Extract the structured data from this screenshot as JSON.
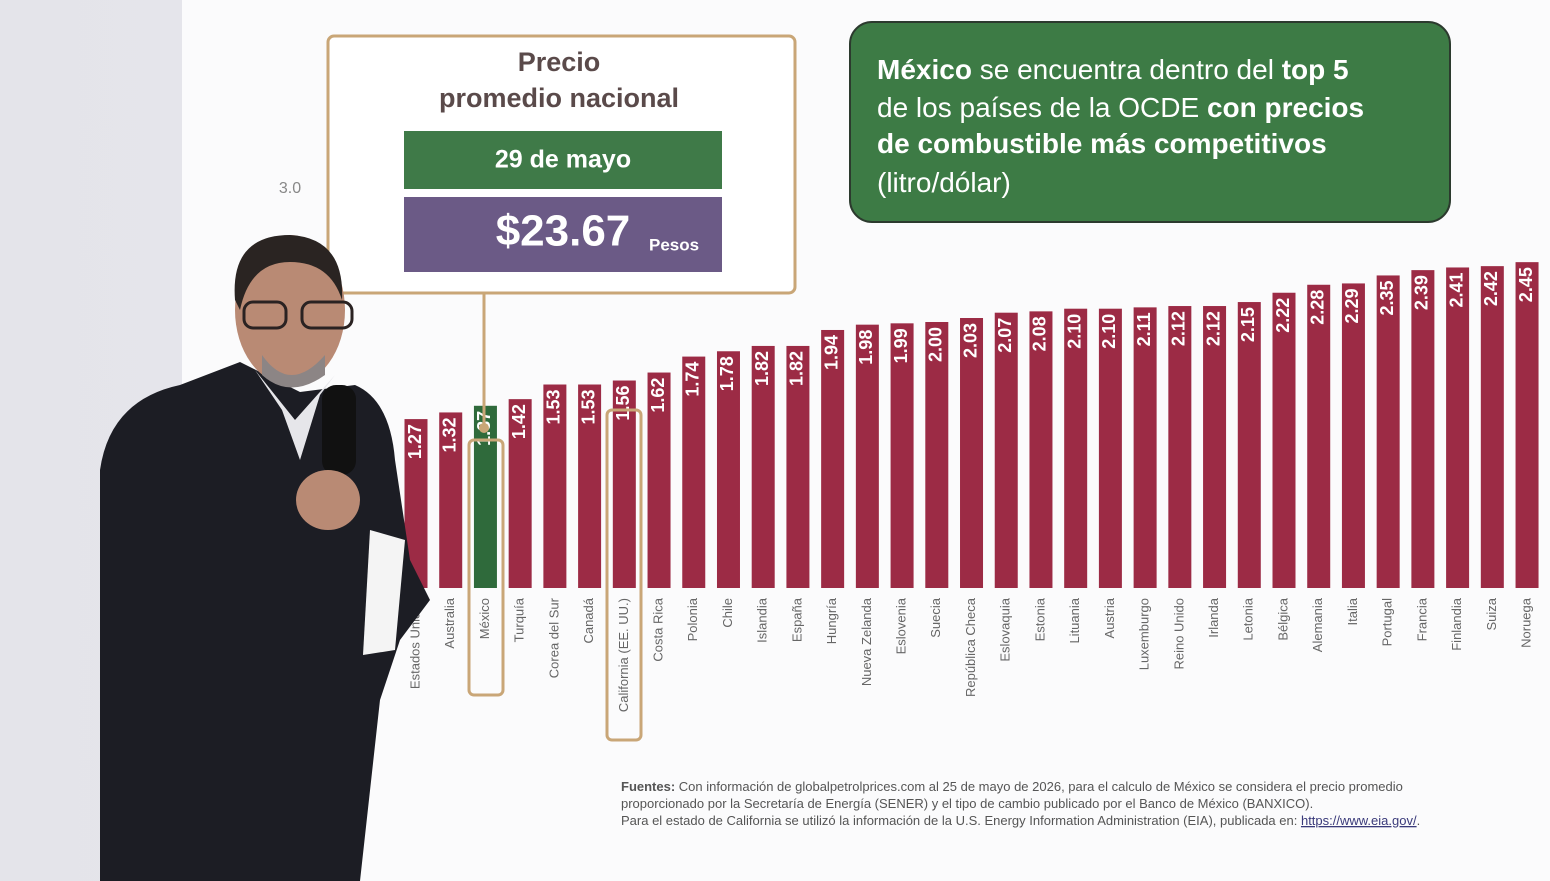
{
  "chart_data": {
    "type": "bar",
    "categories": [
      "Estados Unidos",
      "Australia",
      "México",
      "Turquía",
      "Corea del Sur",
      "Canadá",
      "California (EE. UU.)",
      "Costa Rica",
      "Polonia",
      "Chile",
      "Islandia",
      "España",
      "Hungría",
      "Nueva Zelanda",
      "Eslovenia",
      "Suecia",
      "República Checa",
      "Eslovaquia",
      "Estonia",
      "Lituania",
      "Austria",
      "Luxemburgo",
      "Reino Unido",
      "Irlanda",
      "Letonia",
      "Bélgica",
      "Alemania",
      "Italia",
      "Portugal",
      "Francia",
      "Finlandia",
      "Suiza",
      "Noruega"
    ],
    "values": [
      1.27,
      1.32,
      1.37,
      1.42,
      1.53,
      1.53,
      1.56,
      1.62,
      1.74,
      1.78,
      1.82,
      1.82,
      1.94,
      1.98,
      1.99,
      2.0,
      2.03,
      2.07,
      2.08,
      2.1,
      2.1,
      2.11,
      2.12,
      2.12,
      2.15,
      2.22,
      2.28,
      2.29,
      2.35,
      2.39,
      2.41,
      2.42,
      2.45
    ],
    "value_labels": [
      "1.27",
      "1.32",
      "1.37",
      "1.42",
      "1.53",
      "1.53",
      "1.56",
      "1.62",
      "1.74",
      "1.78",
      "1.82",
      "1.82",
      "1.94",
      "1.98",
      "1.99",
      "2.00",
      "2.03",
      "2.07",
      "2.08",
      "2.10",
      "2.10",
      "2.11",
      "2.12",
      "2.12",
      "2.15",
      "2.22",
      "2.28",
      "2.29",
      "2.35",
      "2.39",
      "2.41",
      "2.42",
      "2.45"
    ],
    "colors": [
      "#9c2b45",
      "#9c2b45",
      "#2f6a3b",
      "#9c2b45",
      "#9c2b45",
      "#9c2b45",
      "#9c2b45",
      "#9c2b45",
      "#9c2b45",
      "#9c2b45",
      "#9c2b45",
      "#9c2b45",
      "#9c2b45",
      "#9c2b45",
      "#9c2b45",
      "#9c2b45",
      "#9c2b45",
      "#9c2b45",
      "#9c2b45",
      "#9c2b45",
      "#9c2b45",
      "#9c2b45",
      "#9c2b45",
      "#9c2b45",
      "#9c2b45",
      "#9c2b45",
      "#9c2b45",
      "#9c2b45",
      "#9c2b45",
      "#9c2b45",
      "#9c2b45",
      "#9c2b45",
      "#9c2b45"
    ],
    "ylim": [
      0,
      3
    ],
    "yticks": [
      {
        "value": 3,
        "label": "3.0"
      }
    ],
    "callout": {
      "title_lines": [
        "Precio",
        "promedio nacional"
      ],
      "date": "29 de mayo",
      "price": "$23.67",
      "unit": "Pesos"
    },
    "headline": [
      [
        {
          "text": "México",
          "bold": true
        },
        {
          "text": " se encuentra dentro del ",
          "bold": false
        },
        {
          "text": "top 5",
          "bold": true
        }
      ],
      [
        {
          "text": "de los países de la OCDE ",
          "bold": false
        },
        {
          "text": "con precios",
          "bold": true
        }
      ],
      [
        {
          "text": "de combustible más competitivos",
          "bold": true
        }
      ],
      [
        {
          "text": "(litro/dólar)",
          "bold": false
        }
      ]
    ],
    "sources": [
      [
        {
          "text": "Fuentes:",
          "bold": true,
          "link": false
        },
        {
          "text": " Con información de globalpetrolprices.com al 25 de mayo de 2026, para el calculo de México se considera el precio promedio",
          "bold": false,
          "link": false
        }
      ],
      [
        {
          "text": "proporcionado por la Secretaría de Energía (SENER) y el tipo de cambio publicado por el Banco de México (BANXICO).",
          "bold": false,
          "link": false
        }
      ],
      [
        {
          "text": "Para el estado de California se utilizó la información de la U.S. Energy Information Administration (EIA), publicada en: ",
          "bold": false,
          "link": false
        },
        {
          "text": "https://www.eia.gov/",
          "bold": false,
          "link": true
        },
        {
          "text": ".",
          "bold": false,
          "link": false
        }
      ]
    ]
  }
}
